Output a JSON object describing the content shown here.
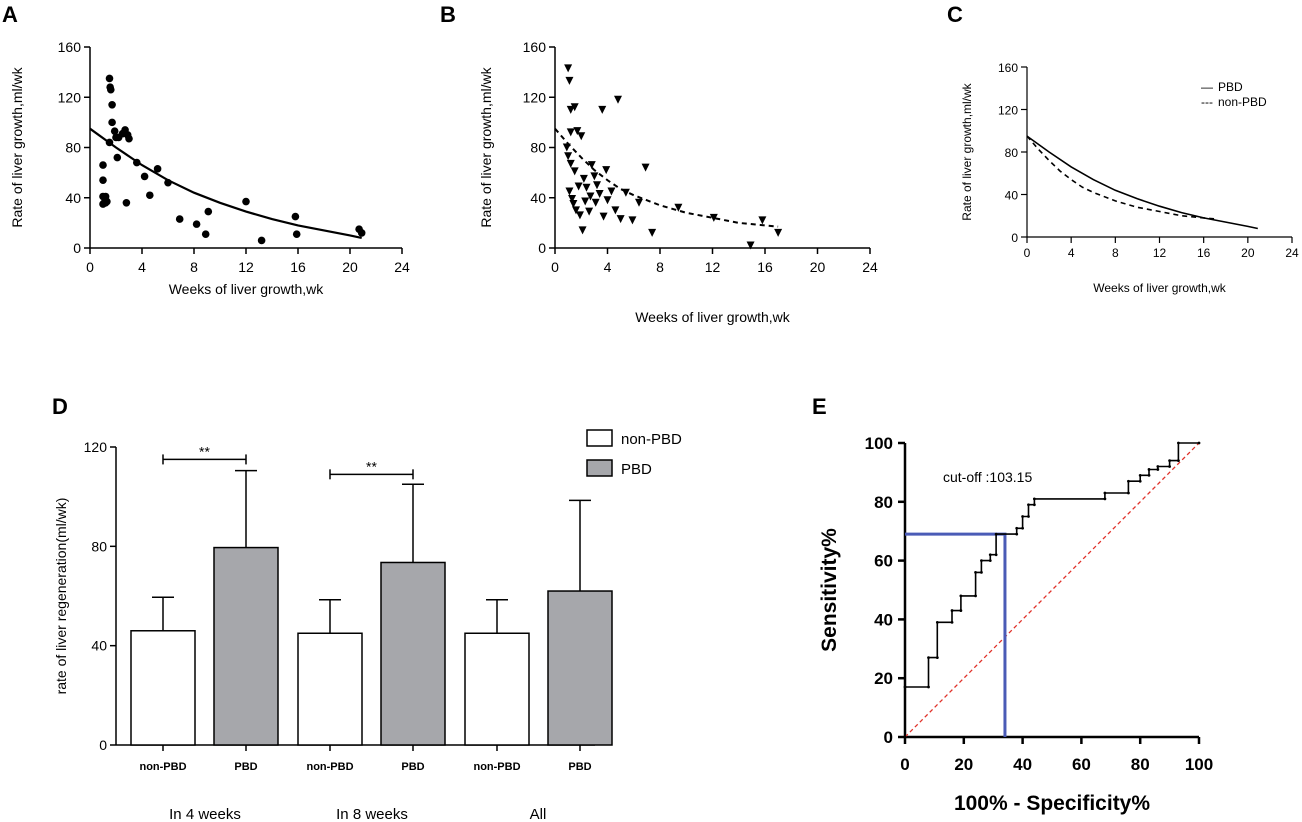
{
  "figure": {
    "panel_labels": [
      "A",
      "B",
      "C",
      "D",
      "E"
    ]
  },
  "chart_data": [
    {
      "panel": "A",
      "type": "scatter",
      "xlabel": "Weeks of liver growth,wk",
      "ylabel": "Rate of liver growth,ml/wk",
      "xlim": [
        0,
        24
      ],
      "ylim": [
        0,
        160
      ],
      "xticks": [
        "0",
        "4",
        "8",
        "12",
        "16",
        "20",
        "24"
      ],
      "yticks": [
        "0",
        "40",
        "80",
        "120",
        "160"
      ],
      "marker": "circle",
      "points": [
        [
          1.0,
          35
        ],
        [
          1.1,
          36
        ],
        [
          1.0,
          41
        ],
        [
          1.0,
          54
        ],
        [
          1.0,
          66
        ],
        [
          1.2,
          36
        ],
        [
          1.2,
          41
        ],
        [
          1.3,
          37
        ],
        [
          1.5,
          135
        ],
        [
          1.55,
          128
        ],
        [
          1.6,
          126
        ],
        [
          1.7,
          114
        ],
        [
          1.7,
          100
        ],
        [
          1.5,
          84
        ],
        [
          1.9,
          93
        ],
        [
          2.0,
          88
        ],
        [
          2.1,
          72
        ],
        [
          2.2,
          88
        ],
        [
          2.5,
          91
        ],
        [
          2.7,
          94
        ],
        [
          2.8,
          36
        ],
        [
          2.9,
          90
        ],
        [
          3.0,
          87
        ],
        [
          3.6,
          68
        ],
        [
          4.2,
          57
        ],
        [
          4.6,
          42
        ],
        [
          5.2,
          63
        ],
        [
          6.0,
          52
        ],
        [
          6.9,
          23
        ],
        [
          8.2,
          19
        ],
        [
          8.9,
          11
        ],
        [
          9.1,
          29
        ],
        [
          12.0,
          37
        ],
        [
          13.2,
          6
        ],
        [
          15.8,
          25
        ],
        [
          15.9,
          11
        ],
        [
          20.7,
          15
        ],
        [
          20.9,
          12
        ]
      ],
      "fit": {
        "style": "solid",
        "x": [
          0.0,
          2,
          4,
          6,
          8,
          10,
          12,
          14,
          16,
          18,
          20,
          20.9
        ],
        "y": [
          95,
          80,
          66,
          54,
          44,
          36,
          29,
          23,
          18,
          14,
          10,
          8
        ]
      }
    },
    {
      "panel": "B",
      "type": "scatter",
      "xlabel": "Weeks of liver growth,wk",
      "ylabel": "Rate of liver growth,ml/wk",
      "xlim": [
        0,
        24
      ],
      "ylim": [
        0,
        160
      ],
      "xticks": [
        "0",
        "4",
        "8",
        "12",
        "16",
        "20",
        "24"
      ],
      "yticks": [
        "0",
        "40",
        "80",
        "120",
        "160"
      ],
      "marker": "triangle-down",
      "points": [
        [
          1.0,
          143
        ],
        [
          1.1,
          133
        ],
        [
          1.2,
          110
        ],
        [
          1.5,
          112
        ],
        [
          1.7,
          93
        ],
        [
          1.2,
          92
        ],
        [
          2.0,
          89
        ],
        [
          0.9,
          80
        ],
        [
          1.0,
          73
        ],
        [
          1.2,
          67
        ],
        [
          1.5,
          61
        ],
        [
          1.1,
          45
        ],
        [
          1.3,
          39
        ],
        [
          1.4,
          35
        ],
        [
          1.6,
          30
        ],
        [
          1.9,
          26
        ],
        [
          2.3,
          37
        ],
        [
          2.1,
          14
        ],
        [
          2.6,
          29
        ],
        [
          2.4,
          48
        ],
        [
          2.2,
          55
        ],
        [
          2.8,
          66
        ],
        [
          3.0,
          57
        ],
        [
          3.2,
          50
        ],
        [
          3.4,
          43
        ],
        [
          3.6,
          110
        ],
        [
          3.1,
          36
        ],
        [
          3.7,
          25
        ],
        [
          4.0,
          38
        ],
        [
          4.3,
          45
        ],
        [
          4.6,
          30
        ],
        [
          4.8,
          118
        ],
        [
          5.0,
          23
        ],
        [
          5.4,
          44
        ],
        [
          5.9,
          22
        ],
        [
          6.4,
          36
        ],
        [
          6.9,
          64
        ],
        [
          7.4,
          12
        ],
        [
          9.4,
          32
        ],
        [
          12.1,
          24
        ],
        [
          14.9,
          2
        ],
        [
          15.8,
          22
        ],
        [
          17.0,
          12
        ],
        [
          2.7,
          41
        ],
        [
          1.8,
          49
        ],
        [
          3.9,
          62
        ]
      ],
      "fit": {
        "style": "dashed",
        "x": [
          0.0,
          1,
          2,
          3,
          4,
          5,
          6,
          8,
          10,
          12,
          14,
          16,
          17
        ],
        "y": [
          95,
          83,
          72,
          62,
          54,
          47,
          42,
          34,
          28,
          24,
          20,
          18,
          17
        ]
      }
    },
    {
      "panel": "C",
      "type": "line",
      "xlabel": "Weeks of liver growth,wk",
      "ylabel": "Rate of liver growth,ml/wk",
      "xlim": [
        0,
        24
      ],
      "ylim": [
        0,
        160
      ],
      "xticks": [
        "0",
        "4",
        "8",
        "12",
        "16",
        "20",
        "24"
      ],
      "yticks": [
        "0",
        "40",
        "80",
        "120",
        "160"
      ],
      "legend": "top-right",
      "series": [
        {
          "name": "PBD",
          "style": "solid",
          "x": [
            0.0,
            2,
            4,
            6,
            8,
            10,
            12,
            14,
            16,
            18,
            20,
            20.9
          ],
          "y": [
            95,
            80,
            66,
            54,
            44,
            36,
            29,
            23,
            18,
            14,
            10,
            8
          ]
        },
        {
          "name": "non-PBD",
          "style": "dashed",
          "x": [
            0.0,
            1,
            2,
            3,
            4,
            5,
            6,
            8,
            10,
            12,
            14,
            16,
            17
          ],
          "y": [
            95,
            83,
            72,
            62,
            54,
            47,
            42,
            34,
            28,
            24,
            20,
            18,
            17
          ]
        }
      ],
      "legend_entries": [
        {
          "glyph": "—",
          "label": "PBD"
        },
        {
          "glyph": "---",
          "label": "non-PBD"
        }
      ]
    },
    {
      "panel": "D",
      "type": "bar",
      "ylabel": "rate of liver regeneration(ml/wk)",
      "ylim": [
        0,
        120
      ],
      "yticks": [
        "0",
        "40",
        "80",
        "120"
      ],
      "categories": [
        "non-PBD",
        "PBD",
        "non-PBD",
        "PBD",
        "non-PBD",
        "PBD"
      ],
      "groups": [
        "In 4 weeks",
        "In 8 weeks",
        "All"
      ],
      "values": [
        46,
        79.5,
        45,
        73.5,
        45,
        62
      ],
      "errors": [
        13.5,
        31,
        13.5,
        31.5,
        13.5,
        36.5
      ],
      "fills": [
        "#ffffff",
        "#a6a7ab",
        "#ffffff",
        "#a6a7ab",
        "#ffffff",
        "#a6a7ab"
      ],
      "legend": [
        {
          "name": "non-PBD",
          "color": "#ffffff"
        },
        {
          "name": "PBD",
          "color": "#a6a7ab"
        }
      ],
      "significance": [
        {
          "from": 0,
          "to": 1,
          "y": 115,
          "label": "**"
        },
        {
          "from": 2,
          "to": 3,
          "y": 109,
          "label": "**"
        }
      ]
    },
    {
      "panel": "E",
      "type": "line",
      "subtype": "roc",
      "xlabel": "100% - Specificity%",
      "ylabel": "Sensitivity%",
      "xlim": [
        0,
        100
      ],
      "ylim": [
        0,
        100
      ],
      "xticks": [
        "0",
        "20",
        "40",
        "60",
        "80",
        "100"
      ],
      "yticks": [
        "0",
        "20",
        "40",
        "60",
        "80",
        "100"
      ],
      "annotation": "cut-off :103.15",
      "cutoff_point": {
        "x": 34,
        "y": 69
      },
      "cutoff_color": "#4a5bb6",
      "reference_color": "#e0322a",
      "roc_points": [
        [
          0,
          0
        ],
        [
          0,
          17
        ],
        [
          8,
          17
        ],
        [
          8,
          27
        ],
        [
          11,
          27
        ],
        [
          11,
          39
        ],
        [
          16,
          39
        ],
        [
          16,
          43
        ],
        [
          19,
          43
        ],
        [
          19,
          48
        ],
        [
          24,
          48
        ],
        [
          24,
          56
        ],
        [
          26,
          56
        ],
        [
          26,
          60
        ],
        [
          29,
          60
        ],
        [
          29,
          62
        ],
        [
          31,
          62
        ],
        [
          31,
          69
        ],
        [
          38,
          69
        ],
        [
          38,
          71
        ],
        [
          40,
          71
        ],
        [
          40,
          75
        ],
        [
          42,
          75
        ],
        [
          42,
          79
        ],
        [
          44,
          79
        ],
        [
          44,
          81
        ],
        [
          68,
          81
        ],
        [
          68,
          83
        ],
        [
          76,
          83
        ],
        [
          76,
          87
        ],
        [
          80,
          87
        ],
        [
          80,
          89
        ],
        [
          83,
          89
        ],
        [
          83,
          91
        ],
        [
          86,
          91
        ],
        [
          86,
          92
        ],
        [
          90,
          92
        ],
        [
          90,
          94
        ],
        [
          93,
          94
        ],
        [
          93,
          100
        ],
        [
          100,
          100
        ]
      ]
    }
  ]
}
